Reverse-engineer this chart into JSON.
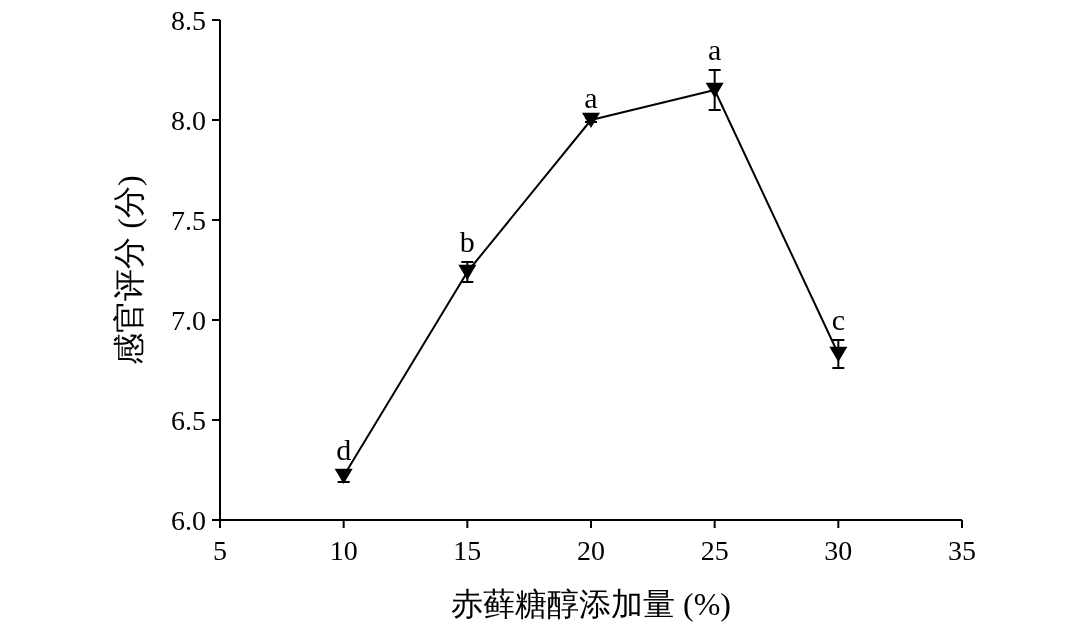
{
  "chart_data": {
    "type": "line",
    "xlabel": "赤藓糖醇添加量 (%)",
    "ylabel": "感官评分 (分)",
    "x": [
      10,
      15,
      20,
      25,
      30
    ],
    "series": [
      {
        "color": "#000000",
        "values": [
          6.22,
          7.24,
          8.0,
          8.15,
          6.83
        ],
        "errors": [
          0.03,
          0.05,
          0.01,
          0.1,
          0.07
        ]
      }
    ],
    "xlim": [
      5,
      35
    ],
    "xticks": [
      5,
      10,
      15,
      20,
      25,
      30,
      35
    ],
    "ylim": [
      6.0,
      8.5
    ],
    "yticks": [
      {
        "value": 6,
        "label": "6.0"
      },
      6.5,
      {
        "value": 7,
        "label": "7.0"
      },
      7.5,
      {
        "value": 8,
        "label": "8.0"
      },
      8.5
    ],
    "marker": "triangle",
    "line_style": "solid",
    "grid": false,
    "annotations": [
      {
        "text": "d",
        "x": 10,
        "y": 6.22
      },
      {
        "text": "b",
        "x": 15,
        "y": 7.24
      },
      {
        "text": "a",
        "x": 20,
        "y": 8.0
      },
      {
        "text": "a",
        "x": 25,
        "y": 8.15
      },
      {
        "text": "c",
        "x": 30,
        "y": 6.83
      }
    ]
  }
}
